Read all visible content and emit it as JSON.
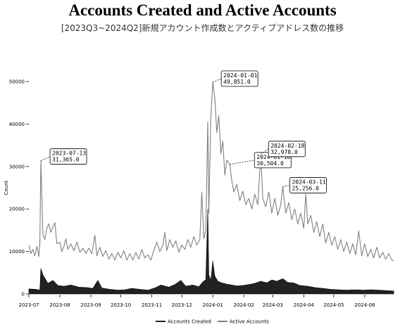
{
  "title": "Accounts Created and Active Accounts",
  "subtitle": "[2023Q3~2024Q2]新規アカウント作成数とアクティブアドレス数の推移",
  "chart_data": {
    "type": "line",
    "title": "Accounts Created and Active Accounts",
    "subtitle": "[2023Q3~2024Q2]新規アカウント作成数とアクティブアドレス数の推移",
    "xlabel": "",
    "ylabel": "Count",
    "x_range": [
      "2023-07-01",
      "2024-06-30"
    ],
    "ylim": [
      0,
      50000
    ],
    "y_ticks": [
      0,
      10000,
      20000,
      30000,
      40000,
      50000
    ],
    "y_tick_labels": [
      "0",
      "10000",
      "20000",
      "30000",
      "40000",
      "50000"
    ],
    "x_ticks": [
      "2023-07-01",
      "2023-08-01",
      "2023-09-01",
      "2023-10-01",
      "2023-11-01",
      "2023-12-01",
      "2024-01-01",
      "2024-02-01",
      "2024-03-01",
      "2024-04-01",
      "2024-05-01",
      "2024-06-01"
    ],
    "x_tick_labels": [
      "2023-07",
      "2023-08",
      "2023-09",
      "2023-10",
      "2023-11",
      "2023-12",
      "2024-01",
      "2024-02",
      "2024-03",
      "2024-04",
      "2024-05",
      "2024-06"
    ],
    "legend_position": "bottom-center",
    "grid": false,
    "series": [
      {
        "name": "Accounts Created",
        "color": "#222222",
        "style": "filled-area",
        "points": [
          [
            "2023-07-01",
            1200
          ],
          [
            "2023-07-08",
            1100
          ],
          [
            "2023-07-12",
            900
          ],
          [
            "2023-07-13",
            6000
          ],
          [
            "2023-07-15",
            4500
          ],
          [
            "2023-07-20",
            2500
          ],
          [
            "2023-07-25",
            3200
          ],
          [
            "2023-07-30",
            2000
          ],
          [
            "2023-08-05",
            1800
          ],
          [
            "2023-08-12",
            2100
          ],
          [
            "2023-08-20",
            1600
          ],
          [
            "2023-08-28",
            1500
          ],
          [
            "2023-09-03",
            1300
          ],
          [
            "2023-09-08",
            3200
          ],
          [
            "2023-09-12",
            1400
          ],
          [
            "2023-09-20",
            1100
          ],
          [
            "2023-09-28",
            900
          ],
          [
            "2023-10-05",
            1000
          ],
          [
            "2023-10-12",
            1300
          ],
          [
            "2023-10-20",
            1100
          ],
          [
            "2023-10-28",
            900
          ],
          [
            "2023-11-05",
            1500
          ],
          [
            "2023-11-10",
            2100
          ],
          [
            "2023-11-18",
            1600
          ],
          [
            "2023-11-24",
            2200
          ],
          [
            "2023-11-30",
            3200
          ],
          [
            "2023-12-05",
            1800
          ],
          [
            "2023-12-12",
            2100
          ],
          [
            "2023-12-18",
            1700
          ],
          [
            "2023-12-22",
            2800
          ],
          [
            "2023-12-25",
            3400
          ],
          [
            "2023-12-27",
            20000
          ],
          [
            "2023-12-28",
            4500
          ],
          [
            "2023-12-30",
            3200
          ],
          [
            "2024-01-01",
            7800
          ],
          [
            "2024-01-03",
            4200
          ],
          [
            "2024-01-06",
            3000
          ],
          [
            "2024-01-10",
            2600
          ],
          [
            "2024-01-15",
            2300
          ],
          [
            "2024-01-20",
            2100
          ],
          [
            "2024-01-25",
            1900
          ],
          [
            "2024-01-31",
            2000
          ],
          [
            "2024-02-06",
            2200
          ],
          [
            "2024-02-12",
            2500
          ],
          [
            "2024-02-18",
            3000
          ],
          [
            "2024-02-24",
            2600
          ],
          [
            "2024-02-29",
            3300
          ],
          [
            "2024-03-05",
            3000
          ],
          [
            "2024-03-11",
            3600
          ],
          [
            "2024-03-16",
            2700
          ],
          [
            "2024-03-22",
            2600
          ],
          [
            "2024-03-28",
            2000
          ],
          [
            "2024-04-05",
            1800
          ],
          [
            "2024-04-12",
            1500
          ],
          [
            "2024-04-20",
            1300
          ],
          [
            "2024-04-28",
            1100
          ],
          [
            "2024-05-06",
            1000
          ],
          [
            "2024-05-14",
            900
          ],
          [
            "2024-05-22",
            1000
          ],
          [
            "2024-05-30",
            900
          ],
          [
            "2024-06-07",
            1000
          ],
          [
            "2024-06-15",
            900
          ],
          [
            "2024-06-22",
            800
          ],
          [
            "2024-06-30",
            700
          ]
        ]
      },
      {
        "name": "Active Accounts",
        "color": "#808080",
        "style": "line",
        "points": [
          [
            "2023-07-01",
            11500
          ],
          [
            "2023-07-03",
            9500
          ],
          [
            "2023-07-05",
            10500
          ],
          [
            "2023-07-07",
            9000
          ],
          [
            "2023-07-09",
            11200
          ],
          [
            "2023-07-11",
            8800
          ],
          [
            "2023-07-12",
            12000
          ],
          [
            "2023-07-13",
            31365
          ],
          [
            "2023-07-15",
            14000
          ],
          [
            "2023-07-17",
            12800
          ],
          [
            "2023-07-19",
            15500
          ],
          [
            "2023-07-21",
            16500
          ],
          [
            "2023-07-23",
            14500
          ],
          [
            "2023-07-25",
            15800
          ],
          [
            "2023-07-27",
            16800
          ],
          [
            "2023-07-29",
            11800
          ],
          [
            "2023-08-01",
            12200
          ],
          [
            "2023-08-03",
            10000
          ],
          [
            "2023-08-05",
            11200
          ],
          [
            "2023-08-07",
            13000
          ],
          [
            "2023-08-09",
            10500
          ],
          [
            "2023-08-12",
            11800
          ],
          [
            "2023-08-15",
            10200
          ],
          [
            "2023-08-18",
            12200
          ],
          [
            "2023-08-21",
            9800
          ],
          [
            "2023-08-24",
            10800
          ],
          [
            "2023-08-27",
            9500
          ],
          [
            "2023-08-30",
            10800
          ],
          [
            "2023-09-02",
            9500
          ],
          [
            "2023-09-05",
            13800
          ],
          [
            "2023-09-07",
            9000
          ],
          [
            "2023-09-10",
            11000
          ],
          [
            "2023-09-13",
            8800
          ],
          [
            "2023-09-16",
            10200
          ],
          [
            "2023-09-19",
            8200
          ],
          [
            "2023-09-22",
            9500
          ],
          [
            "2023-09-25",
            8000
          ],
          [
            "2023-09-28",
            9800
          ],
          [
            "2023-10-01",
            8500
          ],
          [
            "2023-10-04",
            10200
          ],
          [
            "2023-10-07",
            8000
          ],
          [
            "2023-10-10",
            9500
          ],
          [
            "2023-10-13",
            8000
          ],
          [
            "2023-10-16",
            9800
          ],
          [
            "2023-10-19",
            8200
          ],
          [
            "2023-10-22",
            10500
          ],
          [
            "2023-10-25",
            8500
          ],
          [
            "2023-10-28",
            9200
          ],
          [
            "2023-10-31",
            8000
          ],
          [
            "2023-11-03",
            10200
          ],
          [
            "2023-11-06",
            12200
          ],
          [
            "2023-11-09",
            10000
          ],
          [
            "2023-11-12",
            11500
          ],
          [
            "2023-11-14",
            14500
          ],
          [
            "2023-11-16",
            10200
          ],
          [
            "2023-11-19",
            12800
          ],
          [
            "2023-11-22",
            11000
          ],
          [
            "2023-11-25",
            12500
          ],
          [
            "2023-11-28",
            9800
          ],
          [
            "2023-12-01",
            11500
          ],
          [
            "2023-12-04",
            10500
          ],
          [
            "2023-12-07",
            12800
          ],
          [
            "2023-12-10",
            11000
          ],
          [
            "2023-12-13",
            13500
          ],
          [
            "2023-12-16",
            11500
          ],
          [
            "2023-12-19",
            12800
          ],
          [
            "2023-12-21",
            24000
          ],
          [
            "2023-12-23",
            13000
          ],
          [
            "2023-12-25",
            15000
          ],
          [
            "2023-12-27",
            40500
          ],
          [
            "2023-12-28",
            19000
          ],
          [
            "2023-12-30",
            41500
          ],
          [
            "2024-01-01",
            49851
          ],
          [
            "2024-01-03",
            46000
          ],
          [
            "2024-01-05",
            38000
          ],
          [
            "2024-01-07",
            42000
          ],
          [
            "2024-01-09",
            33000
          ],
          [
            "2024-01-11",
            36000
          ],
          [
            "2024-01-13",
            28000
          ],
          [
            "2024-01-15",
            31500
          ],
          [
            "2024-01-18",
            30504
          ],
          [
            "2024-01-20",
            26500
          ],
          [
            "2024-01-22",
            24000
          ],
          [
            "2024-01-25",
            25800
          ],
          [
            "2024-01-28",
            22000
          ],
          [
            "2024-01-31",
            24200
          ],
          [
            "2024-02-03",
            21000
          ],
          [
            "2024-02-06",
            22500
          ],
          [
            "2024-02-09",
            20000
          ],
          [
            "2024-02-12",
            23500
          ],
          [
            "2024-02-15",
            21000
          ],
          [
            "2024-02-18",
            32978
          ],
          [
            "2024-02-20",
            22500
          ],
          [
            "2024-02-23",
            20500
          ],
          [
            "2024-02-26",
            24000
          ],
          [
            "2024-02-29",
            19000
          ],
          [
            "2024-03-03",
            22500
          ],
          [
            "2024-03-06",
            18500
          ],
          [
            "2024-03-09",
            21000
          ],
          [
            "2024-03-11",
            25256
          ],
          [
            "2024-03-14",
            19000
          ],
          [
            "2024-03-17",
            21500
          ],
          [
            "2024-03-20",
            17500
          ],
          [
            "2024-03-23",
            20000
          ],
          [
            "2024-03-26",
            16500
          ],
          [
            "2024-03-29",
            19000
          ],
          [
            "2024-04-01",
            15500
          ],
          [
            "2024-04-03",
            23500
          ],
          [
            "2024-04-05",
            16500
          ],
          [
            "2024-04-08",
            18500
          ],
          [
            "2024-04-11",
            14500
          ],
          [
            "2024-04-14",
            17000
          ],
          [
            "2024-04-17",
            13500
          ],
          [
            "2024-04-20",
            16500
          ],
          [
            "2024-04-23",
            12000
          ],
          [
            "2024-04-26",
            14500
          ],
          [
            "2024-04-29",
            11500
          ],
          [
            "2024-05-02",
            13500
          ],
          [
            "2024-05-05",
            10500
          ],
          [
            "2024-05-08",
            12800
          ],
          [
            "2024-05-11",
            10000
          ],
          [
            "2024-05-14",
            12200
          ],
          [
            "2024-05-17",
            9500
          ],
          [
            "2024-05-20",
            11800
          ],
          [
            "2024-05-23",
            9200
          ],
          [
            "2024-05-26",
            14800
          ],
          [
            "2024-05-29",
            9000
          ],
          [
            "2024-06-01",
            11800
          ],
          [
            "2024-06-04",
            8800
          ],
          [
            "2024-06-07",
            10500
          ],
          [
            "2024-06-10",
            8500
          ],
          [
            "2024-06-13",
            11000
          ],
          [
            "2024-06-16",
            8500
          ],
          [
            "2024-06-19",
            9800
          ],
          [
            "2024-06-22",
            8200
          ],
          [
            "2024-06-25",
            9500
          ],
          [
            "2024-06-28",
            8000
          ],
          [
            "2024-06-30",
            7800
          ]
        ]
      }
    ],
    "annotations": [
      {
        "date": "2023-07-13",
        "value": 31365,
        "label_date": "2023-07-13",
        "label_value": "31,365.0"
      },
      {
        "date": "2024-01-01",
        "value": 49851,
        "label_date": "2024-01-01",
        "label_value": "49,851.0"
      },
      {
        "date": "2024-01-18",
        "value": 30504,
        "label_date": "2024-01-18",
        "label_value": "30,504.0"
      },
      {
        "date": "2024-02-18",
        "value": 32978,
        "label_date": "2024-02-18",
        "label_value": "32,978.0"
      },
      {
        "date": "2024-03-11",
        "value": 25256,
        "label_date": "2024-03-11",
        "label_value": "25,256.0"
      }
    ]
  }
}
